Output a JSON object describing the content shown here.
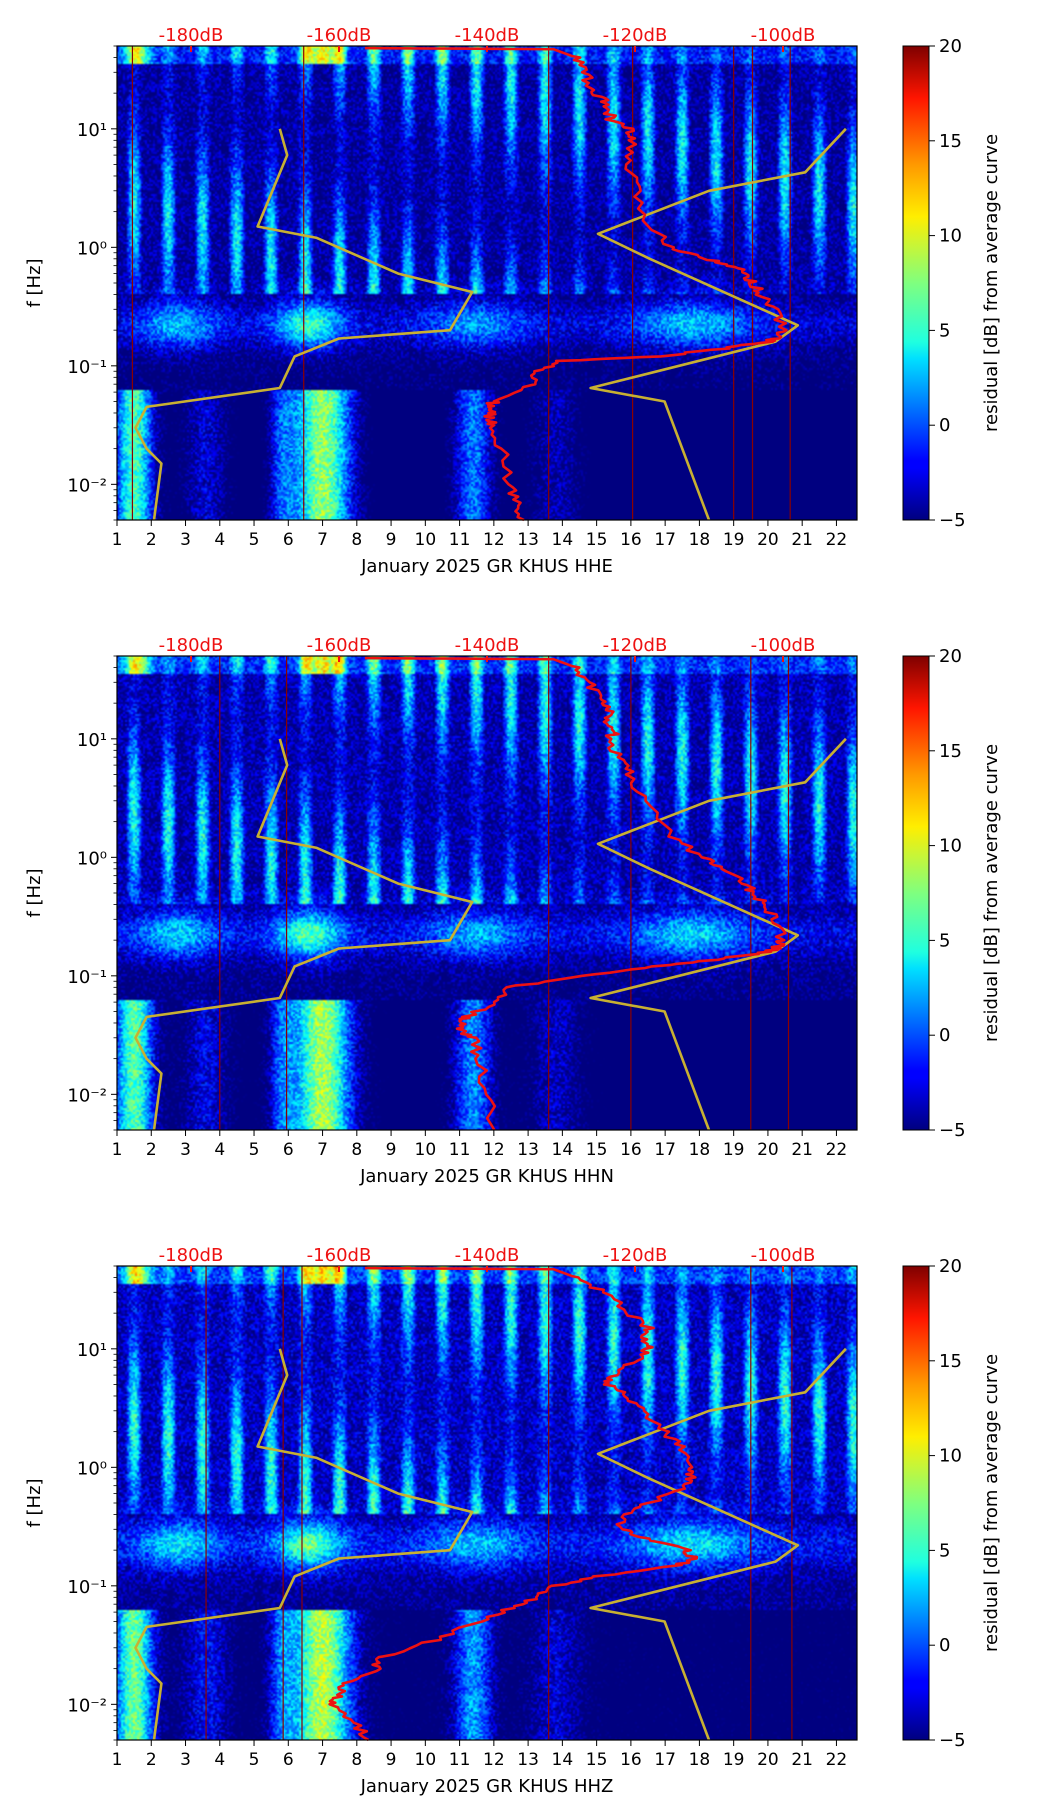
{
  "chart_data": [
    {
      "type": "heatmap",
      "channel": "HHE",
      "xlabel": "January 2025 GR KHUS  HHE",
      "ylabel": "f [Hz]",
      "colorbar_label": "residual [dB] from average curve",
      "xlim": [
        1,
        22.6
      ],
      "ylim": [
        0.005,
        50
      ],
      "yscale": "log",
      "clim": [
        -5,
        20
      ],
      "colormap": "jet",
      "x_ticks": [
        "1",
        "2",
        "3",
        "4",
        "5",
        "6",
        "7",
        "8",
        "9",
        "10",
        "11",
        "12",
        "13",
        "14",
        "15",
        "16",
        "17",
        "18",
        "19",
        "20",
        "21",
        "22"
      ],
      "y_ticks": [
        "10⁻²",
        "10⁻¹",
        "10⁰",
        "10¹"
      ],
      "colorbar_ticks": [
        "−5",
        "0",
        "5",
        "10",
        "15",
        "20"
      ],
      "db_axis_ticks": [
        "-180dB",
        "-160dB",
        "-140dB",
        "-120dB",
        "-100dB"
      ],
      "db_axis_range": [
        -190,
        -90
      ],
      "median_psd_curve": {
        "color": "#ee1111",
        "db": [
          -156.5,
          -131,
          -128,
          -126.5,
          -126.5,
          -124.5,
          -123.8,
          -123.2,
          -121,
          -120.5,
          -121,
          -120,
          -118,
          -115,
          -110,
          -107,
          -105,
          -104,
          -103,
          -101,
          -100,
          -101,
          -102,
          -108,
          -117,
          -130,
          -133,
          -134,
          -139,
          -139.7,
          -139.5,
          -139.7,
          -139,
          -138,
          -137,
          -136,
          -135
        ],
        "freq_hz": [
          48,
          47,
          40,
          30,
          22,
          18,
          15,
          12,
          10,
          8,
          5,
          3,
          1.5,
          1,
          0.8,
          0.7,
          0.6,
          0.5,
          0.4,
          0.3,
          0.2,
          0.17,
          0.16,
          0.14,
          0.12,
          0.11,
          0.09,
          0.07,
          0.05,
          0.045,
          0.04,
          0.035,
          0.03,
          0.02,
          0.01,
          0.007,
          0.005
        ]
      },
      "model_curves": {
        "color": "#c8b032",
        "nhnm": {
          "db": [
            -91.5,
            -97,
            -110,
            -125,
            -118,
            -98,
            -101,
            -126,
            -116,
            -110
          ],
          "freq_hz": [
            10,
            4.3,
            3,
            1.3,
            0.8,
            0.22,
            0.16,
            0.065,
            0.05,
            0.005
          ]
        },
        "nlnm": {
          "db": [
            -168,
            -167,
            -171,
            -163,
            -152,
            -142,
            -145,
            -160,
            -166,
            -168,
            -186,
            -187.5,
            -186,
            -184,
            -185
          ],
          "freq_hz": [
            10,
            6,
            1.5,
            1.2,
            0.6,
            0.42,
            0.2,
            0.17,
            0.12,
            0.065,
            0.045,
            0.03,
            0.02,
            0.015,
            0.005
          ]
        }
      },
      "gaps_days": [
        1.45,
        6.45,
        13.6,
        16.05,
        19.0,
        19.55,
        20.65
      ]
    },
    {
      "type": "heatmap",
      "channel": "HHN",
      "xlabel": "January 2025 GR KHUS  HHN",
      "ylabel": "f [Hz]",
      "colorbar_label": "residual [dB] from average curve",
      "xlim": [
        1,
        22.6
      ],
      "ylim": [
        0.005,
        50
      ],
      "yscale": "log",
      "clim": [
        -5,
        20
      ],
      "colormap": "jet",
      "x_ticks": [
        "1",
        "2",
        "3",
        "4",
        "5",
        "6",
        "7",
        "8",
        "9",
        "10",
        "11",
        "12",
        "13",
        "14",
        "15",
        "16",
        "17",
        "18",
        "19",
        "20",
        "21",
        "22"
      ],
      "y_ticks": [
        "10⁻²",
        "10⁻¹",
        "10⁰",
        "10¹"
      ],
      "colorbar_ticks": [
        "−5",
        "0",
        "5",
        "10",
        "15",
        "20"
      ],
      "db_axis_ticks": [
        "-180dB",
        "-160dB",
        "-140dB",
        "-120dB",
        "-100dB"
      ],
      "db_axis_range": [
        -190,
        -90
      ],
      "median_psd_curve": {
        "color": "#ee1111",
        "db": [
          -156.5,
          -131,
          -128,
          -126.5,
          -124.5,
          -123.5,
          -124,
          -122.5,
          -123.5,
          -122.5,
          -120.5,
          -119,
          -115,
          -111,
          -108,
          -105,
          -104,
          -102.5,
          -101,
          -100,
          -101,
          -102,
          -108,
          -117,
          -127,
          -137,
          -138.5,
          -143,
          -143.5,
          -143.8,
          -142,
          -141,
          -140,
          -139
        ],
        "freq_hz": [
          48,
          47,
          40,
          30,
          22,
          18,
          15,
          12,
          10,
          7,
          5,
          3,
          1.5,
          1,
          0.8,
          0.6,
          0.5,
          0.4,
          0.3,
          0.2,
          0.17,
          0.16,
          0.14,
          0.12,
          0.1,
          0.08,
          0.06,
          0.045,
          0.04,
          0.035,
          0.03,
          0.02,
          0.01,
          0.005
        ]
      },
      "model_curves": {
        "color": "#c8b032",
        "nhnm": {
          "db": [
            -91.5,
            -97,
            -110,
            -125,
            -118,
            -98,
            -101,
            -126,
            -116,
            -110
          ],
          "freq_hz": [
            10,
            4.3,
            3,
            1.3,
            0.8,
            0.22,
            0.16,
            0.065,
            0.05,
            0.005
          ]
        },
        "nlnm": {
          "db": [
            -168,
            -167,
            -171,
            -163,
            -152,
            -142,
            -145,
            -160,
            -166,
            -168,
            -186,
            -187.5,
            -186,
            -184,
            -185
          ],
          "freq_hz": [
            10,
            6,
            1.5,
            1.2,
            0.6,
            0.42,
            0.2,
            0.17,
            0.12,
            0.065,
            0.045,
            0.03,
            0.02,
            0.015,
            0.005
          ]
        }
      },
      "gaps_days": [
        4.0,
        5.95,
        13.6,
        16.0,
        19.5,
        20.6
      ]
    },
    {
      "type": "heatmap",
      "channel": "HHZ",
      "xlabel": "January 2025 GR KHUS  HHZ",
      "ylabel": "f [Hz]",
      "colorbar_label": "residual [dB] from average curve",
      "xlim": [
        1,
        22.6
      ],
      "ylim": [
        0.005,
        50
      ],
      "yscale": "log",
      "clim": [
        -5,
        20
      ],
      "colormap": "jet",
      "x_ticks": [
        "1",
        "2",
        "3",
        "4",
        "5",
        "6",
        "7",
        "8",
        "9",
        "10",
        "11",
        "12",
        "13",
        "14",
        "15",
        "16",
        "17",
        "18",
        "19",
        "20",
        "21",
        "22"
      ],
      "y_ticks": [
        "10⁻²",
        "10⁻¹",
        "10⁰",
        "10¹"
      ],
      "colorbar_ticks": [
        "−5",
        "0",
        "5",
        "10",
        "15",
        "20"
      ],
      "db_axis_ticks": [
        "-180dB",
        "-160dB",
        "-140dB",
        "-120dB",
        "-100dB"
      ],
      "db_axis_range": [
        -190,
        -90
      ],
      "median_psd_curve": {
        "color": "#ee1111",
        "db": [
          -156.5,
          -131,
          -128,
          -124,
          -121,
          -118,
          -118.5,
          -118,
          -120,
          -123,
          -124,
          -121,
          -119,
          -116,
          -114,
          -113,
          -112.5,
          -113,
          -118,
          -121,
          -122,
          -118,
          -113,
          -112,
          -114,
          -125,
          -131,
          -133,
          -137,
          -141,
          -147,
          -154,
          -155,
          -159,
          -160,
          -161,
          -158,
          -156
        ],
        "freq_hz": [
          48,
          47,
          40,
          30,
          20,
          15,
          12,
          10,
          8,
          6,
          5,
          4,
          3,
          2,
          1.5,
          1,
          0.85,
          0.7,
          0.5,
          0.4,
          0.3,
          0.25,
          0.2,
          0.17,
          0.15,
          0.12,
          0.1,
          0.08,
          0.065,
          0.05,
          0.035,
          0.025,
          0.02,
          0.015,
          0.012,
          0.01,
          0.007,
          0.005
        ]
      },
      "model_curves": {
        "color": "#c8b032",
        "nhnm": {
          "db": [
            -91.5,
            -97,
            -110,
            -125,
            -118,
            -98,
            -101,
            -126,
            -116,
            -110
          ],
          "freq_hz": [
            10,
            4.3,
            3,
            1.3,
            0.8,
            0.22,
            0.16,
            0.065,
            0.05,
            0.005
          ]
        },
        "nlnm": {
          "db": [
            -168,
            -167,
            -171,
            -163,
            -152,
            -142,
            -145,
            -160,
            -166,
            -168,
            -186,
            -187.5,
            -186,
            -184,
            -185
          ],
          "freq_hz": [
            10,
            6,
            1.5,
            1.2,
            0.6,
            0.42,
            0.2,
            0.17,
            0.12,
            0.065,
            0.045,
            0.03,
            0.02,
            0.015,
            0.005
          ]
        }
      },
      "gaps_days": [
        3.6,
        5.85,
        6.4,
        13.6,
        19.5,
        20.7
      ]
    }
  ]
}
